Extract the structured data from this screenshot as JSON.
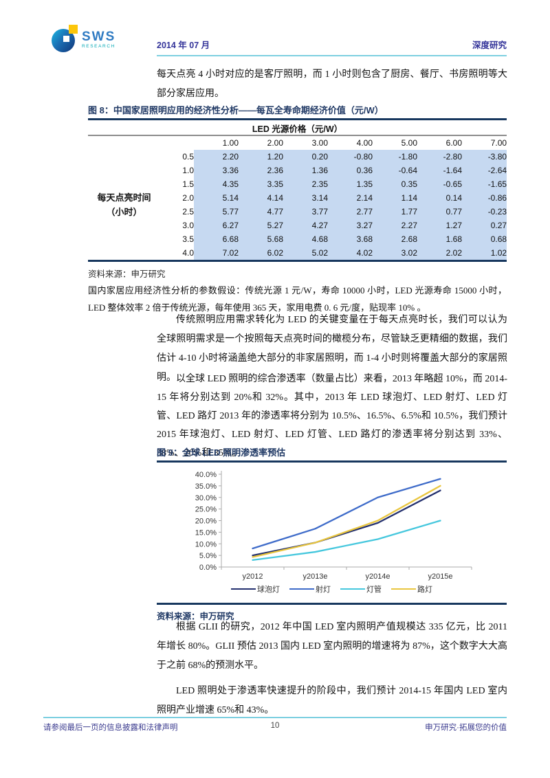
{
  "header": {
    "logo_text": "SWS",
    "logo_subtext": "RESEARCH",
    "date": "2014 年 07 月",
    "doc_type": "深度研究"
  },
  "paragraphs": {
    "p1": "每天点亮 4 小时对应的是客厅照明，而 1 小时则包含了厨房、餐厅、书房照明等大部分家居应用。",
    "p2": "传统照明应用需求转化为 LED 的关键变量在于每天点亮时长，我们可以认为全球照明需求是一个按照每天点亮时间的橄榄分布，尽管缺乏更精细的数据，我们估计 4-10 小时将涵盖绝大部分的非家居照明，而 1-4 小时则将覆盖大部分的家居照明。",
    "p3": "以全球 LED 照明的综合渗透率（数量占比）来看，2013 年略超 10%，而 2014-15 年将分别达到 20%和 32%。其中，2013 年 LED 球泡灯、LED 射灯、LED 灯管、LED 路灯 2013 年的渗透率将分别为 10.5%、16.5%、6.5%和 10.5%，我们预计 2015 年球泡灯、LED 射灯、LED 灯管、LED 路灯的渗透率将分别达到 33%、38%、20%和 35%。",
    "p4": "根据 GLII 的研究，2012 年中国 LED 室内照明产值规模达 335 亿元，比 2011 年增长 80%。GLII 预估 2013 国内 LED 室内照明的增速将为 87%，这个数字大大高于之前 68%的预测水平。",
    "p5": "LED 照明处于渗透率快速提升的阶段中，我们预计 2014-15 年国内 LED 室内照明产业增速 65%和 43%。"
  },
  "figure8": {
    "title": "图 8：中国家居照明应用的经济性分析——每瓦全寿命期经济价值（元/W）",
    "table": {
      "col_group_header": "LED 光源价格（元/W）",
      "row_group_header_line1": "每天点亮时间",
      "row_group_header_line2": "（小时）",
      "col_headers": [
        "1.00",
        "2.00",
        "3.00",
        "4.00",
        "5.00",
        "6.00",
        "7.00"
      ],
      "rows": [
        {
          "hours": "0.5",
          "values": [
            "2.20",
            "1.20",
            "0.20",
            "-0.80",
            "-1.80",
            "-2.80",
            "-3.80"
          ]
        },
        {
          "hours": "1.0",
          "values": [
            "3.36",
            "2.36",
            "1.36",
            "0.36",
            "-0.64",
            "-1.64",
            "-2.64"
          ]
        },
        {
          "hours": "1.5",
          "values": [
            "4.35",
            "3.35",
            "2.35",
            "1.35",
            "0.35",
            "-0.65",
            "-1.65"
          ]
        },
        {
          "hours": "2.0",
          "values": [
            "5.14",
            "4.14",
            "3.14",
            "2.14",
            "1.14",
            "0.14",
            "-0.86"
          ]
        },
        {
          "hours": "2.5",
          "values": [
            "5.77",
            "4.77",
            "3.77",
            "2.77",
            "1.77",
            "0.77",
            "-0.23"
          ]
        },
        {
          "hours": "3.0",
          "values": [
            "6.27",
            "5.27",
            "4.27",
            "3.27",
            "2.27",
            "1.27",
            "0.27"
          ]
        },
        {
          "hours": "3.5",
          "values": [
            "6.68",
            "5.68",
            "4.68",
            "3.68",
            "2.68",
            "1.68",
            "0.68"
          ]
        },
        {
          "hours": "4.0",
          "values": [
            "7.02",
            "6.02",
            "5.02",
            "4.02",
            "3.02",
            "2.02",
            "1.02"
          ]
        }
      ]
    },
    "source": "资料来源：申万研究",
    "note": "国内家居应用经济性分析的参数假设：传统光源 1 元/W，寿命 10000 小时，LED 光源寿命 15000 小时，LED 整体效率 2 倍于传统光源，每年使用 365 天，家用电费 0. 6 元/度，贴现率 10% 。"
  },
  "figure9": {
    "title": "图 9：全球 LED 照明渗透率预估",
    "source": "资料来源：申万研究"
  },
  "chart_data": {
    "type": "line",
    "title": "全球 LED 照明渗透率预估",
    "x": [
      "y2012",
      "y2013e",
      "y2014e",
      "y2015e"
    ],
    "series": [
      {
        "name": "球泡灯",
        "color": "#23306e",
        "values": [
          5.0,
          10.5,
          19.0,
          33.0
        ]
      },
      {
        "name": "射灯",
        "color": "#3e6bc9",
        "values": [
          8.0,
          16.5,
          30.0,
          38.0
        ]
      },
      {
        "name": "灯管",
        "color": "#45c7dd",
        "values": [
          3.0,
          6.5,
          12.0,
          20.0
        ]
      },
      {
        "name": "路灯",
        "color": "#e9c63f",
        "values": [
          4.3,
          10.5,
          20.0,
          35.0
        ]
      }
    ],
    "ylim": [
      0,
      40
    ],
    "ytick_step": 5,
    "ytick_suffix": "%",
    "grid": false,
    "legend_position": "bottom"
  },
  "footer": {
    "left": "请参阅最后一页的信息披露和法律声明",
    "page_number": "10",
    "right": "申万研究·拓展您的价值"
  },
  "colors": {
    "figure_accent": "#17375e",
    "title_text": "#1f3864",
    "table_cell_blue": "#c6d9f1",
    "header_indigo": "#333399",
    "rule_cyan": "#7ccfe0"
  }
}
